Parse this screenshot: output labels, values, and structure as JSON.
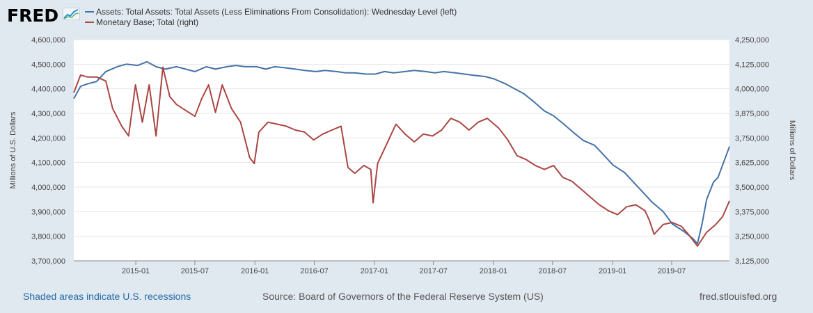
{
  "header": {
    "logo_text": "FRED"
  },
  "legend": [
    {
      "label": "Assets: Total Assets: Total Assets (Less Eliminations From Consolidation): Wednesday Level (left)",
      "color": "#4572a7"
    },
    {
      "label": "Monetary Base; Total (right)",
      "color": "#aa4643"
    }
  ],
  "footer": {
    "recessions": "Shaded areas indicate U.S. recessions",
    "source": "Source: Board of Governors of the Federal Reserve System (US)",
    "site": "fred.stlouisfed.org"
  },
  "chart_data": {
    "type": "line",
    "x_range": [
      "2014-06-25",
      "2019-12-25"
    ],
    "xticks": [
      "2015-01",
      "2015-07",
      "2016-01",
      "2016-07",
      "2017-01",
      "2017-07",
      "2018-01",
      "2018-07",
      "2019-01",
      "2019-07"
    ],
    "ylabel_left": "Millions of U.S. Dollars",
    "ylabel_right": "Millions of Dollars",
    "ylim_left": [
      3700000,
      4600000
    ],
    "ylim_right": [
      3125000,
      4250000
    ],
    "yticks_left": [
      "3,700,000",
      "3,800,000",
      "3,900,000",
      "4,000,000",
      "4,100,000",
      "4,200,000",
      "4,300,000",
      "4,400,000",
      "4,500,000",
      "4,600,000"
    ],
    "yticks_right": [
      "3,125,000",
      "3,250,000",
      "3,375,000",
      "3,500,000",
      "3,625,000",
      "3,750,000",
      "3,875,000",
      "4,000,000",
      "4,125,000",
      "4,250,000"
    ],
    "grid": true,
    "series": [
      {
        "name": "Assets: Total Assets: Total Assets (Less Eliminations From Consolidation): Wednesday Level (left)",
        "axis": "left",
        "color": "#4572a7",
        "x": [
          "2014-06-25",
          "2014-07-16",
          "2014-08-06",
          "2014-09-03",
          "2014-10-01",
          "2014-11-05",
          "2014-12-03",
          "2015-01-07",
          "2015-02-04",
          "2015-03-04",
          "2015-04-01",
          "2015-05-06",
          "2015-06-03",
          "2015-07-01",
          "2015-08-05",
          "2015-09-02",
          "2015-10-07",
          "2015-11-04",
          "2015-12-02",
          "2016-01-06",
          "2016-02-03",
          "2016-03-02",
          "2016-04-06",
          "2016-05-04",
          "2016-06-01",
          "2016-07-06",
          "2016-08-03",
          "2016-09-07",
          "2016-10-05",
          "2016-11-02",
          "2016-12-07",
          "2017-01-04",
          "2017-02-01",
          "2017-03-01",
          "2017-04-05",
          "2017-05-03",
          "2017-06-07",
          "2017-07-05",
          "2017-08-02",
          "2017-09-06",
          "2017-10-04",
          "2017-11-01",
          "2017-12-06",
          "2018-01-03",
          "2018-02-07",
          "2018-03-07",
          "2018-04-04",
          "2018-05-02",
          "2018-06-06",
          "2018-07-04",
          "2018-08-01",
          "2018-09-05",
          "2018-10-03",
          "2018-11-07",
          "2018-12-05",
          "2019-01-02",
          "2019-02-06",
          "2019-03-06",
          "2019-04-03",
          "2019-05-01",
          "2019-06-05",
          "2019-07-03",
          "2019-08-07",
          "2019-09-04",
          "2019-09-18",
          "2019-10-02",
          "2019-10-16",
          "2019-11-06",
          "2019-11-20",
          "2019-12-04",
          "2019-12-25"
        ],
        "values": [
          4360000,
          4410000,
          4420000,
          4430000,
          4470000,
          4490000,
          4500000,
          4495000,
          4510000,
          4490000,
          4480000,
          4490000,
          4480000,
          4470000,
          4490000,
          4480000,
          4490000,
          4495000,
          4490000,
          4490000,
          4480000,
          4490000,
          4485000,
          4480000,
          4475000,
          4470000,
          4475000,
          4470000,
          4465000,
          4465000,
          4460000,
          4460000,
          4470000,
          4465000,
          4470000,
          4475000,
          4470000,
          4465000,
          4470000,
          4465000,
          4460000,
          4455000,
          4450000,
          4440000,
          4420000,
          4400000,
          4380000,
          4350000,
          4310000,
          4290000,
          4260000,
          4220000,
          4190000,
          4170000,
          4130000,
          4090000,
          4060000,
          4020000,
          3980000,
          3940000,
          3900000,
          3850000,
          3820000,
          3790000,
          3770000,
          3850000,
          3950000,
          4020000,
          4040000,
          4090000,
          4165000
        ]
      },
      {
        "name": "Monetary Base; Total (right)",
        "axis": "right",
        "color": "#aa4643",
        "x": [
          "2014-06-25",
          "2014-07-16",
          "2014-08-06",
          "2014-09-03",
          "2014-10-01",
          "2014-10-22",
          "2014-11-19",
          "2014-12-10",
          "2014-12-31",
          "2015-01-21",
          "2015-02-11",
          "2015-03-04",
          "2015-03-25",
          "2015-04-15",
          "2015-05-06",
          "2015-06-03",
          "2015-07-01",
          "2015-07-22",
          "2015-08-12",
          "2015-09-02",
          "2015-09-23",
          "2015-10-21",
          "2015-11-18",
          "2015-12-16",
          "2015-12-30",
          "2016-01-13",
          "2016-02-10",
          "2016-03-09",
          "2016-04-06",
          "2016-05-04",
          "2016-06-01",
          "2016-06-29",
          "2016-07-27",
          "2016-08-24",
          "2016-09-21",
          "2016-10-12",
          "2016-11-02",
          "2016-11-30",
          "2016-12-21",
          "2016-12-28",
          "2017-01-11",
          "2017-02-08",
          "2017-03-08",
          "2017-04-05",
          "2017-05-03",
          "2017-05-31",
          "2017-06-28",
          "2017-07-26",
          "2017-08-23",
          "2017-09-20",
          "2017-10-18",
          "2017-11-15",
          "2017-12-13",
          "2017-12-27",
          "2018-01-17",
          "2018-02-14",
          "2018-03-14",
          "2018-04-11",
          "2018-05-09",
          "2018-06-06",
          "2018-07-04",
          "2018-08-01",
          "2018-08-29",
          "2018-09-26",
          "2018-10-24",
          "2018-11-21",
          "2018-12-19",
          "2019-01-16",
          "2019-02-13",
          "2019-03-13",
          "2019-04-10",
          "2019-04-24",
          "2019-05-08",
          "2019-06-05",
          "2019-07-03",
          "2019-07-31",
          "2019-08-21",
          "2019-09-18",
          "2019-10-16",
          "2019-11-13",
          "2019-12-04",
          "2019-12-25"
        ],
        "values": [
          3980000,
          4070000,
          4060000,
          4060000,
          4040000,
          3900000,
          3810000,
          3760000,
          4020000,
          3830000,
          4020000,
          3760000,
          4110000,
          3960000,
          3920000,
          3890000,
          3860000,
          3950000,
          4020000,
          3880000,
          4020000,
          3900000,
          3830000,
          3650000,
          3620000,
          3780000,
          3830000,
          3820000,
          3810000,
          3790000,
          3780000,
          3740000,
          3770000,
          3790000,
          3810000,
          3600000,
          3570000,
          3610000,
          3590000,
          3420000,
          3620000,
          3720000,
          3820000,
          3770000,
          3730000,
          3770000,
          3760000,
          3790000,
          3850000,
          3830000,
          3790000,
          3830000,
          3850000,
          3830000,
          3800000,
          3740000,
          3660000,
          3640000,
          3610000,
          3590000,
          3610000,
          3550000,
          3530000,
          3490000,
          3450000,
          3410000,
          3380000,
          3360000,
          3400000,
          3410000,
          3380000,
          3330000,
          3260000,
          3310000,
          3320000,
          3300000,
          3260000,
          3200000,
          3270000,
          3310000,
          3350000,
          3430000
        ]
      }
    ]
  }
}
